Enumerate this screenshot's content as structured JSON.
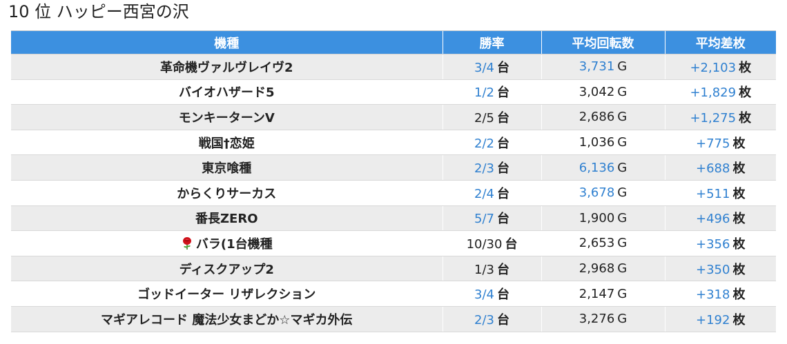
{
  "title": "10 位 ハッピー西宮の沢",
  "table": {
    "headers": [
      "機種",
      "勝率",
      "平均回転数",
      "平均差枚"
    ],
    "rows": [
      {
        "name": "革命機ヴァルヴレイヴ2",
        "win": "3/4",
        "win_unit": "台",
        "win_highlight": true,
        "spins": "3,731",
        "spins_unit": "G",
        "spins_highlight": true,
        "diff": "+2,103",
        "diff_unit": "枚"
      },
      {
        "name": "バイオハザード5",
        "win": "1/2",
        "win_unit": "台",
        "win_highlight": true,
        "spins": "3,042",
        "spins_unit": "G",
        "spins_highlight": false,
        "diff": "+1,829",
        "diff_unit": "枚"
      },
      {
        "name": "モンキーターンV",
        "win": "2/5",
        "win_unit": "台",
        "win_highlight": false,
        "spins": "2,686",
        "spins_unit": "G",
        "spins_highlight": false,
        "diff": "+1,275",
        "diff_unit": "枚"
      },
      {
        "name": "戦国†恋姫",
        "win": "2/2",
        "win_unit": "台",
        "win_highlight": true,
        "spins": "1,036",
        "spins_unit": "G",
        "spins_highlight": false,
        "diff": "+775",
        "diff_unit": "枚"
      },
      {
        "name": "東京喰種",
        "win": "2/3",
        "win_unit": "台",
        "win_highlight": true,
        "spins": "6,136",
        "spins_unit": "G",
        "spins_highlight": true,
        "diff": "+688",
        "diff_unit": "枚"
      },
      {
        "name": "からくりサーカス",
        "win": "2/4",
        "win_unit": "台",
        "win_highlight": true,
        "spins": "3,678",
        "spins_unit": "G",
        "spins_highlight": true,
        "diff": "+511",
        "diff_unit": "枚"
      },
      {
        "name": "番長ZERO",
        "win": "5/7",
        "win_unit": "台",
        "win_highlight": true,
        "spins": "1,900",
        "spins_unit": "G",
        "spins_highlight": false,
        "diff": "+496",
        "diff_unit": "枚"
      },
      {
        "name": "バラ(1台機種",
        "icon": "rose-icon",
        "win": "10/30",
        "win_unit": "台",
        "win_highlight": false,
        "spins": "2,653",
        "spins_unit": "G",
        "spins_highlight": false,
        "diff": "+356",
        "diff_unit": "枚"
      },
      {
        "name": "ディスクアップ2",
        "win": "1/3",
        "win_unit": "台",
        "win_highlight": false,
        "spins": "2,968",
        "spins_unit": "G",
        "spins_highlight": false,
        "diff": "+350",
        "diff_unit": "枚"
      },
      {
        "name": "ゴッドイーター リザレクション",
        "win": "3/4",
        "win_unit": "台",
        "win_highlight": true,
        "spins": "2,147",
        "spins_unit": "G",
        "spins_highlight": false,
        "diff": "+318",
        "diff_unit": "枚"
      },
      {
        "name": "マギアレコード 魔法少女まどか☆マギカ外伝",
        "win": "2/3",
        "win_unit": "台",
        "win_highlight": true,
        "spins": "3,276",
        "spins_unit": "G",
        "spins_highlight": false,
        "diff": "+192",
        "diff_unit": "枚"
      }
    ]
  },
  "colors": {
    "header_bg": "#3c90e0",
    "highlight_text": "#2f80d0",
    "row_alt_bg": "#ececec"
  }
}
